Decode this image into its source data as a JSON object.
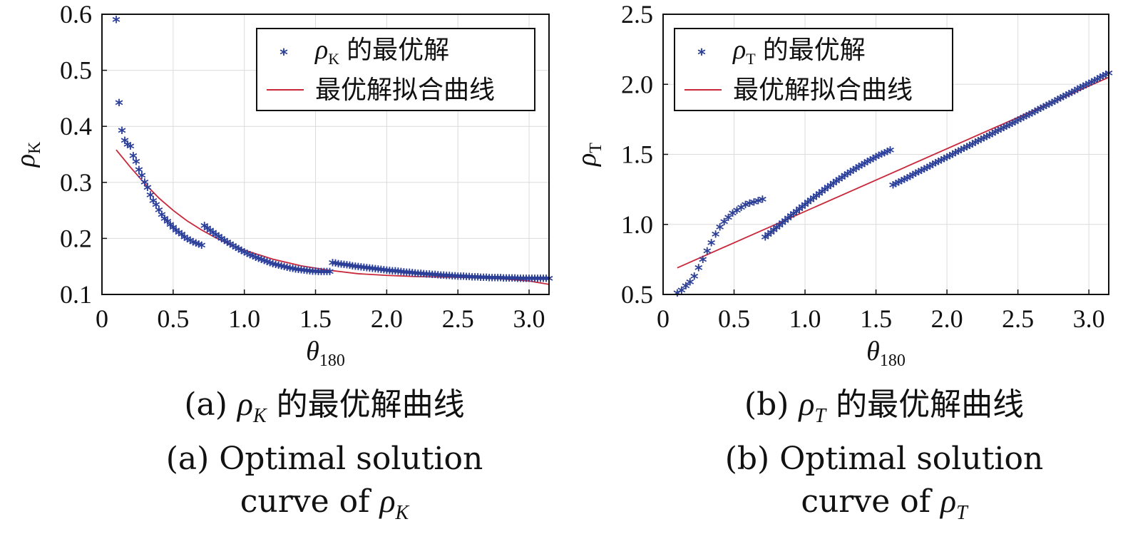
{
  "chart_data": [
    {
      "type": "scatter",
      "panel": "a",
      "xlabel": "θ",
      "xlabel_sub": "180",
      "ylabel": "ρ",
      "ylabel_sub": "K",
      "xlim": [
        0,
        3.14
      ],
      "ylim": [
        0.1,
        0.6
      ],
      "xticks": [
        "0",
        "0.5",
        "1.0",
        "1.5",
        "2.0",
        "2.5",
        "3.0"
      ],
      "xtick_values": [
        0,
        0.5,
        1.0,
        1.5,
        2.0,
        2.5,
        3.0
      ],
      "yticks": [
        "0.1",
        "0.2",
        "0.3",
        "0.4",
        "0.5",
        "0.6"
      ],
      "ytick_values": [
        0.1,
        0.2,
        0.3,
        0.4,
        0.5,
        0.6
      ],
      "grid": true,
      "legend_position": "top-right",
      "series": [
        {
          "name": "ρ_K 的最优解",
          "legend_symbol": "ρ",
          "legend_sub": "K",
          "legend_text": "的最优解",
          "marker": "*",
          "color": "#2b3f98",
          "segments": [
            {
              "x": [
                0.1,
                0.12,
                0.14,
                0.16,
                0.18,
                0.2,
                0.22,
                0.24,
                0.26,
                0.28,
                0.3,
                0.32,
                0.34,
                0.36,
                0.38,
                0.4,
                0.42,
                0.44,
                0.46,
                0.48,
                0.5,
                0.52,
                0.54,
                0.56,
                0.58,
                0.6,
                0.62,
                0.64,
                0.66,
                0.68,
                0.7
              ],
              "y": [
                0.588,
                0.44,
                0.39,
                0.372,
                0.365,
                0.362,
                0.345,
                0.335,
                0.32,
                0.31,
                0.298,
                0.288,
                0.275,
                0.265,
                0.258,
                0.248,
                0.24,
                0.233,
                0.228,
                0.222,
                0.217,
                0.212,
                0.208,
                0.205,
                0.2,
                0.197,
                0.194,
                0.191,
                0.189,
                0.187,
                0.185
              ]
            },
            {
              "x_start": 0.72,
              "x_end": 1.6,
              "y_start": 0.22,
              "y_end": 0.138,
              "shape": "decay"
            },
            {
              "x_start": 1.62,
              "x_end": 3.14,
              "y_start": 0.154,
              "y_end": 0.126,
              "shape": "decay"
            }
          ]
        },
        {
          "name": "最优解拟合曲线",
          "legend_text": "最优解拟合曲线",
          "type": "line",
          "color": "#c8283a",
          "x": [
            0.1,
            0.2,
            0.3,
            0.4,
            0.5,
            0.6,
            0.7,
            0.8,
            0.9,
            1.0,
            1.2,
            1.4,
            1.6,
            1.8,
            2.0,
            2.2,
            2.4,
            2.6,
            2.8,
            3.0,
            3.14
          ],
          "y": [
            0.358,
            0.327,
            0.298,
            0.272,
            0.25,
            0.231,
            0.215,
            0.201,
            0.189,
            0.179,
            0.163,
            0.151,
            0.143,
            0.137,
            0.134,
            0.132,
            0.131,
            0.13,
            0.128,
            0.124,
            0.118
          ]
        }
      ]
    },
    {
      "type": "scatter",
      "panel": "b",
      "xlabel": "θ",
      "xlabel_sub": "180",
      "ylabel": "ρ",
      "ylabel_sub": "T",
      "xlim": [
        0,
        3.14
      ],
      "ylim": [
        0.5,
        2.5
      ],
      "xticks": [
        "0",
        "0.5",
        "1.0",
        "1.5",
        "2.0",
        "2.5",
        "3.0"
      ],
      "xtick_values": [
        0,
        0.5,
        1.0,
        1.5,
        2.0,
        2.5,
        3.0
      ],
      "yticks": [
        "0.5",
        "1.0",
        "1.5",
        "2.0",
        "2.5"
      ],
      "ytick_values": [
        0.5,
        1.0,
        1.5,
        2.0,
        2.5
      ],
      "grid": true,
      "legend_position": "top-left",
      "series": [
        {
          "name": "ρ_T 的最优解",
          "legend_symbol": "ρ",
          "legend_sub": "T",
          "legend_text": "的最优解",
          "marker": "*",
          "color": "#2b3f98",
          "segments": [
            {
              "x": [
                0.1,
                0.13,
                0.16,
                0.19,
                0.22,
                0.25,
                0.28,
                0.31,
                0.34,
                0.37,
                0.4,
                0.43,
                0.46,
                0.49,
                0.52,
                0.55,
                0.58,
                0.61,
                0.64,
                0.67,
                0.7
              ],
              "y": [
                0.5,
                0.52,
                0.55,
                0.58,
                0.62,
                0.68,
                0.74,
                0.8,
                0.86,
                0.92,
                0.97,
                1.01,
                1.04,
                1.07,
                1.09,
                1.11,
                1.13,
                1.14,
                1.15,
                1.16,
                1.17
              ]
            },
            {
              "x_start": 0.72,
              "x_end": 1.6,
              "y_start": 0.9,
              "y_end": 1.52,
              "shape": "concave"
            },
            {
              "x_start": 1.62,
              "x_end": 3.14,
              "y_start": 1.27,
              "y_end": 2.07,
              "shape": "linear"
            }
          ]
        },
        {
          "name": "最优解拟合曲线",
          "legend_text": "最优解拟合曲线",
          "type": "line",
          "color": "#c8283a",
          "x": [
            0.1,
            3.14
          ],
          "y": [
            0.69,
            2.05
          ]
        }
      ]
    }
  ],
  "captions": {
    "a_line1_prefix": "(a) ",
    "a_line1_symbol": "ρ",
    "a_line1_sub": "K",
    "a_line1_suffix": " 的最优解曲线",
    "a_line2": "(a) Optimal solution",
    "a_line3_text": "curve of ",
    "a_line3_symbol": "ρ",
    "a_line3_sub": "K",
    "b_line1_prefix": "(b) ",
    "b_line1_symbol": "ρ",
    "b_line1_sub": "T",
    "b_line1_suffix": " 的最优解曲线",
    "b_line2": "(b) Optimal solution",
    "b_line3_text": "curve of ",
    "b_line3_symbol": "ρ",
    "b_line3_sub": "T"
  }
}
